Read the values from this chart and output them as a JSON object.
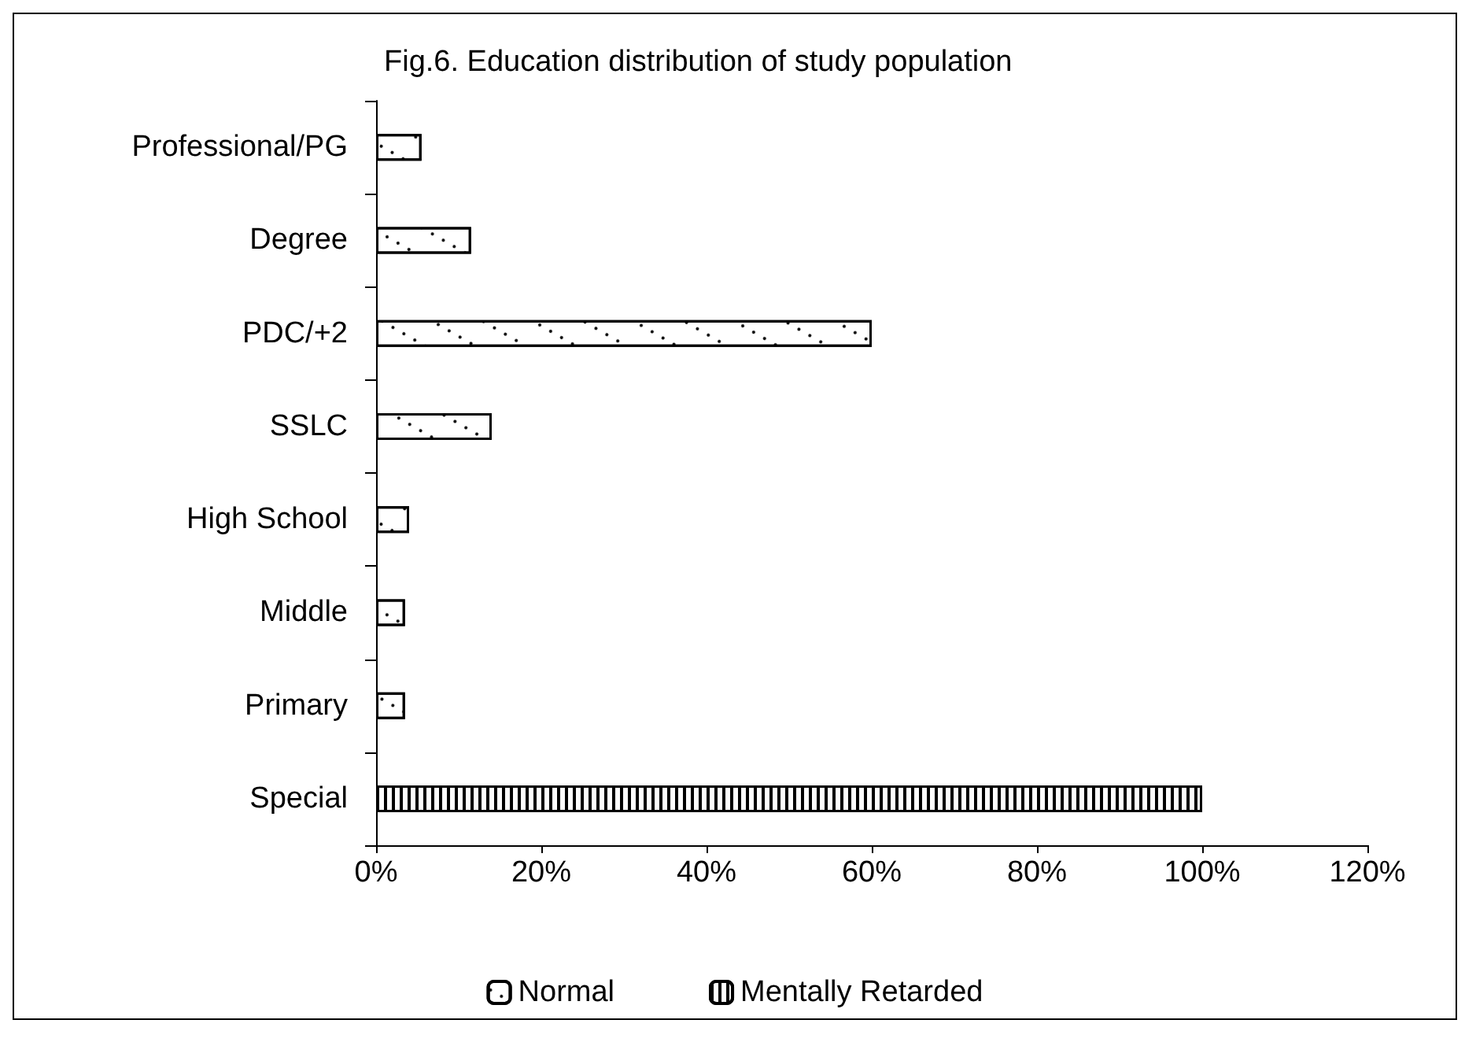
{
  "chart_data": {
    "type": "bar",
    "orientation": "horizontal",
    "stacked": true,
    "title": "Fig.6. Education distribution of study population",
    "categories": [
      "Professional/PG",
      "Degree",
      "PDC/+2",
      "SSLC",
      "High School",
      "Middle",
      "Primary",
      "Special"
    ],
    "series": [
      {
        "name": "Normal",
        "color": "#ffffff",
        "values": [
          5.5,
          11.5,
          60,
          14,
          4,
          3.5,
          3.5,
          null
        ]
      },
      {
        "name": "Mentally Retarded",
        "color": "#ffffff",
        "values": [
          null,
          null,
          null,
          null,
          null,
          null,
          null,
          100
        ]
      }
    ],
    "xlim": [
      0,
      120
    ],
    "xticks": [
      {
        "value": 0,
        "label": "0%"
      },
      {
        "value": 20,
        "label": "20%"
      },
      {
        "value": 40,
        "label": "40%"
      },
      {
        "value": 60,
        "label": "60%"
      },
      {
        "value": 80,
        "label": "80%"
      },
      {
        "value": 100,
        "label": "100%"
      },
      {
        "value": 120,
        "label": "120%"
      }
    ],
    "grid": false,
    "legend": "bottom"
  }
}
